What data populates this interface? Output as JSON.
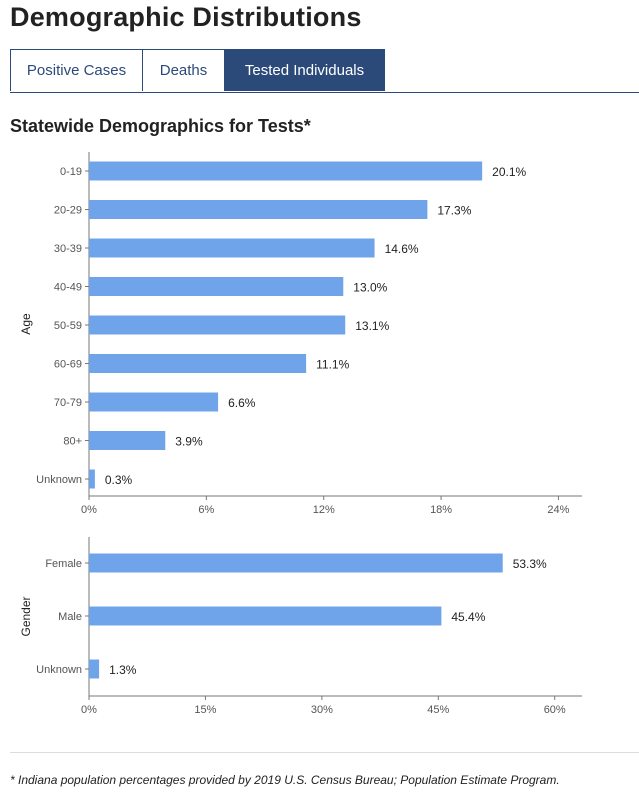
{
  "header": {
    "title": "Demographic Distributions"
  },
  "tabs": [
    {
      "label": "Positive Cases",
      "active": false
    },
    {
      "label": "Deaths",
      "active": false
    },
    {
      "label": "Tested Individuals",
      "active": true
    }
  ],
  "colors": {
    "bar": "#6fa4ea",
    "tab_active": "#2b4a7a",
    "axis": "#777777"
  },
  "section": {
    "title": "Statewide Demographics for Tests*"
  },
  "chart_data": [
    {
      "type": "bar",
      "orientation": "horizontal",
      "ylabel": "Age",
      "categories": [
        "0-19",
        "20-29",
        "30-39",
        "40-49",
        "50-59",
        "60-69",
        "70-79",
        "80+",
        "Unknown"
      ],
      "values": [
        20.1,
        17.3,
        14.6,
        13.0,
        13.1,
        11.1,
        6.6,
        3.9,
        0.3
      ],
      "value_labels": [
        "20.1%",
        "17.3%",
        "14.6%",
        "13.0%",
        "13.1%",
        "11.1%",
        "6.6%",
        "3.9%",
        "0.3%"
      ],
      "xlim": [
        0,
        25
      ],
      "xticks": [
        0,
        6,
        12,
        18,
        24
      ],
      "xtick_labels": [
        "0%",
        "6%",
        "12%",
        "18%",
        "24%"
      ],
      "grid": false
    },
    {
      "type": "bar",
      "orientation": "horizontal",
      "ylabel": "Gender",
      "categories": [
        "Female",
        "Male",
        "Unknown"
      ],
      "values": [
        53.3,
        45.4,
        1.3
      ],
      "value_labels": [
        "53.3%",
        "45.4%",
        "1.3%"
      ],
      "xlim": [
        0,
        63
      ],
      "xticks": [
        0,
        15,
        30,
        45,
        60
      ],
      "xtick_labels": [
        "0%",
        "15%",
        "30%",
        "45%",
        "60%"
      ],
      "grid": false
    }
  ],
  "footnote": "* Indiana population percentages provided by 2019 U.S. Census Bureau; Population Estimate Program."
}
